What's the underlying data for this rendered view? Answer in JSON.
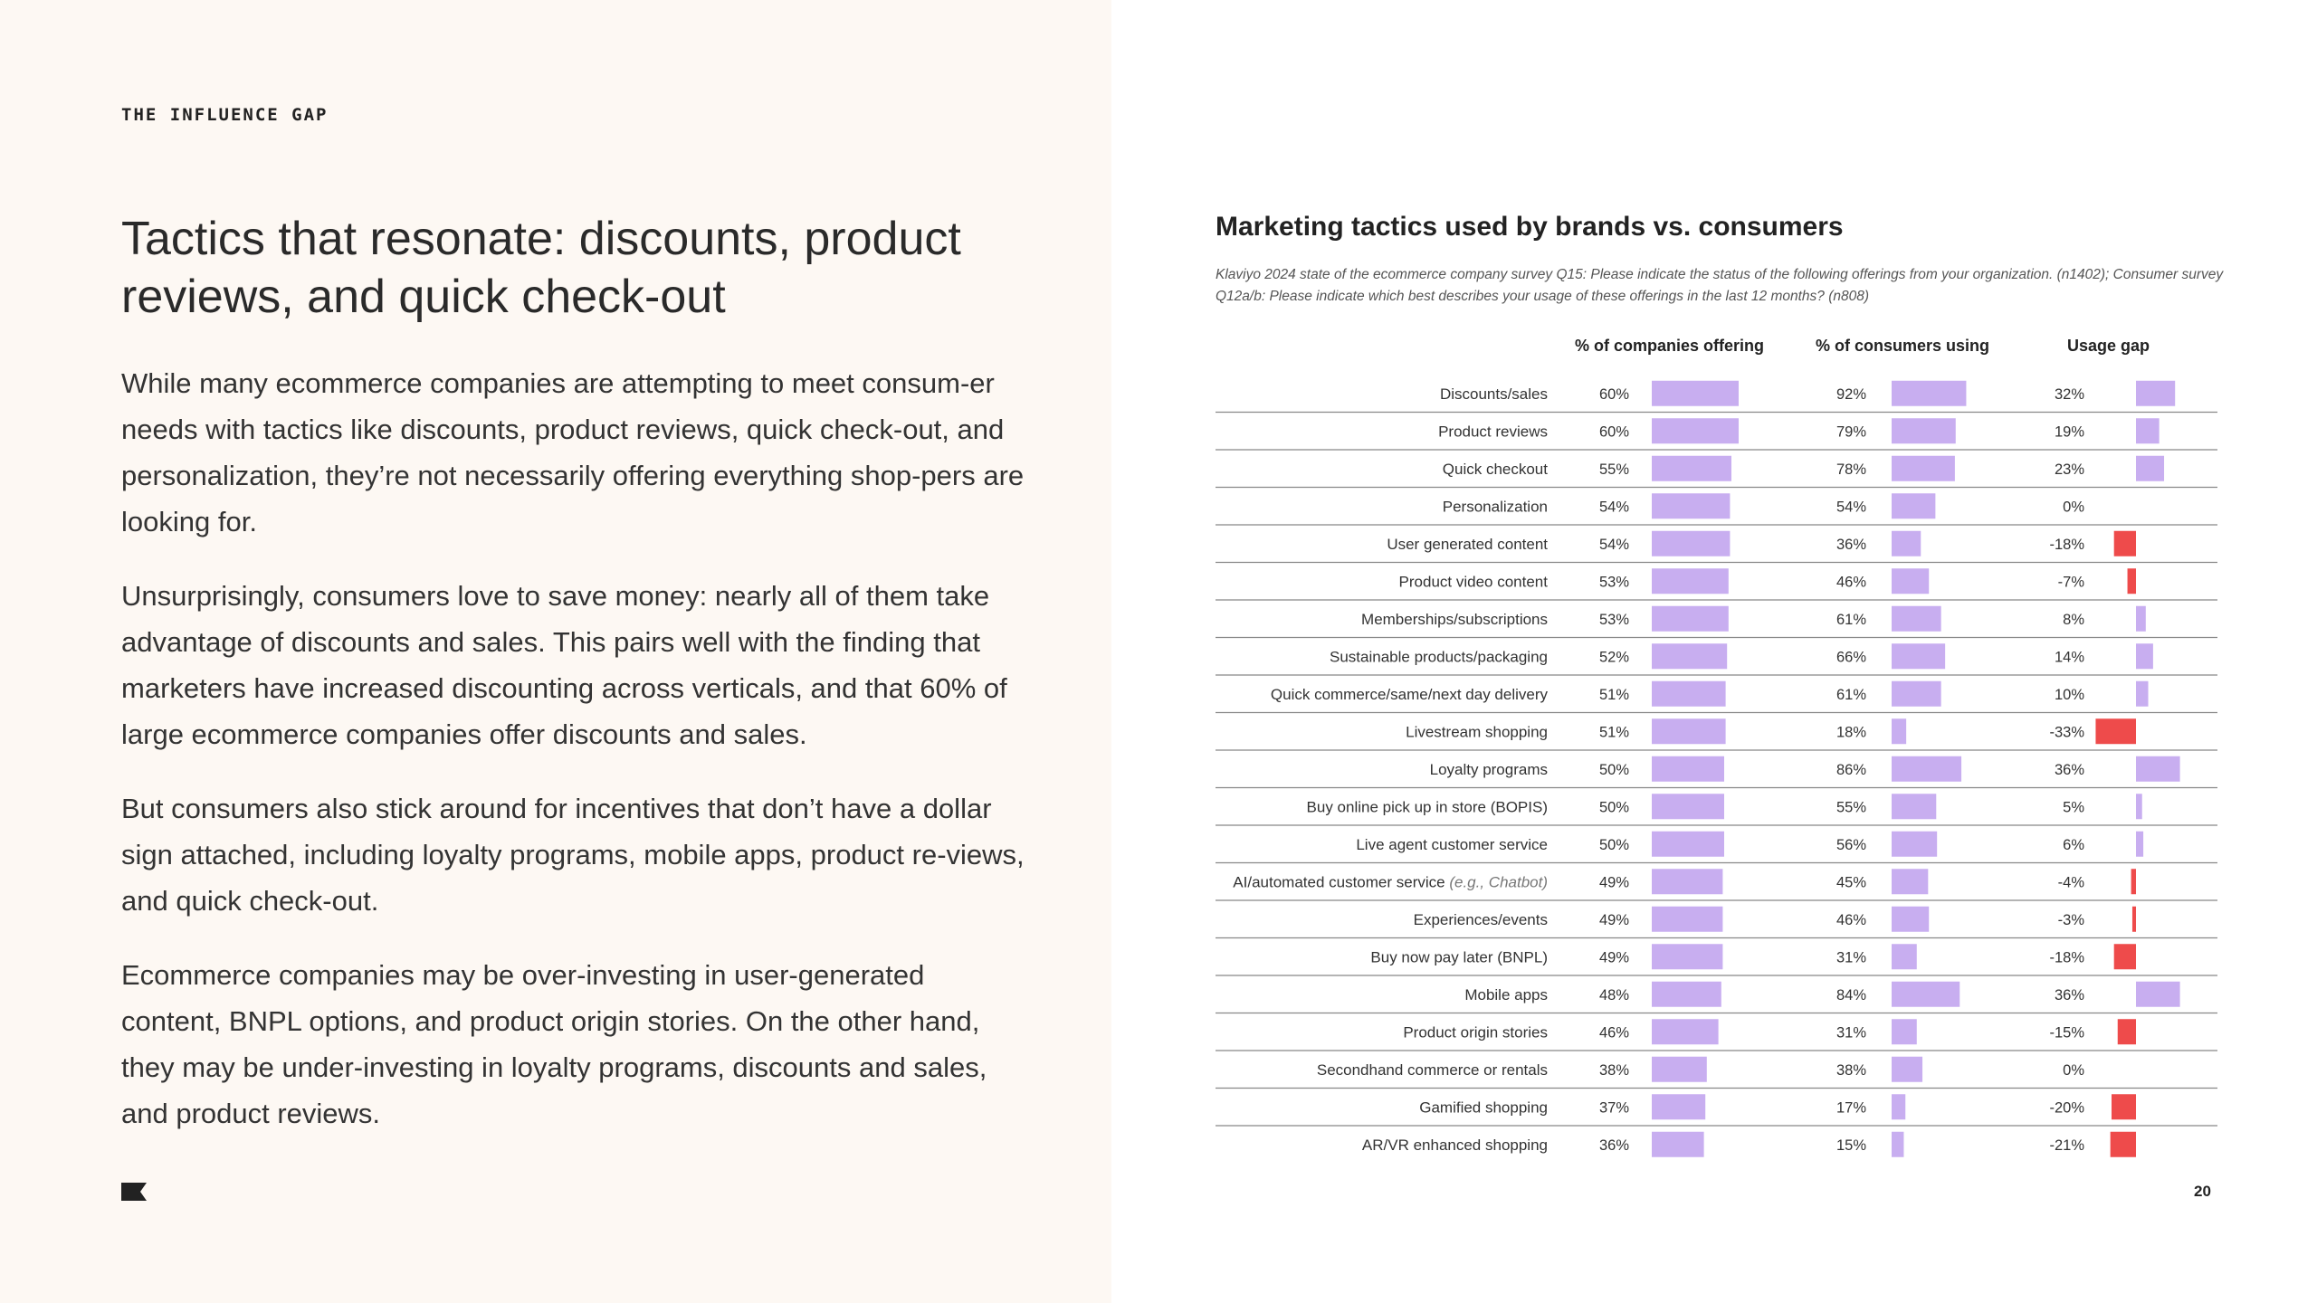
{
  "page": {
    "eyebrow": "THE INFLUENCE GAP",
    "headline": "Tactics that resonate: discounts, product reviews, and quick check-out",
    "paragraphs": [
      "While many ecommerce companies are attempting to meet consum-er needs with tactics like discounts, product reviews, quick check-out, and personalization, they’re not necessarily offering everything shop-pers are looking for.",
      "Unsurprisingly, consumers love to save money: nearly all of them take advantage of discounts and sales. This pairs well with the finding that marketers have increased discounting across verticals, and that 60% of large ecommerce companies offer discounts and sales.",
      "But consumers also stick around for incentives that don’t have a dollar sign attached, including loyalty programs, mobile apps, product re-views, and quick check-out.",
      "Ecommerce companies may be over-investing in user-generated content, BNPL options, and product origin stories. On the other hand, they may be under-investing in loyalty programs, discounts and sales, and product reviews."
    ],
    "page_number": "20",
    "logo_icon": "flag-logo-icon"
  },
  "chart_data": {
    "type": "bar",
    "title": "Marketing tactics used by brands vs. consumers",
    "source": "Klaviyo 2024 state of the ecommerce company survey  Q15: Please indicate the status of the following offerings from your organization. (n1402); Consumer survey Q12a/b: Please indicate which best describes your usage of these offerings in the last 12 months? (n808)",
    "column_headers": [
      "% of companies offering",
      "% of consumers using",
      "Usage gap"
    ],
    "categories": [
      "Discounts/sales",
      "Product reviews",
      "Quick checkout",
      "Personalization",
      "User generated content",
      "Product video content",
      "Memberships/subscriptions",
      "Sustainable products/packaging",
      "Quick commerce/same/next day delivery",
      "Livestream shopping",
      "Loyalty programs",
      "Buy online pick up in store (BOPIS)",
      "Live agent customer service",
      "AI/automated customer service",
      "Experiences/events",
      "Buy now pay later (BNPL)",
      "Mobile apps",
      "Product origin stories",
      "Secondhand commerce or rentals",
      "Gamified shopping",
      "AR/VR enhanced shopping"
    ],
    "category_notes": {
      "AI/automated customer service": "(e.g., Chatbot)"
    },
    "series": [
      {
        "name": "% of companies offering",
        "values": [
          60,
          60,
          55,
          54,
          54,
          53,
          53,
          52,
          51,
          51,
          50,
          50,
          50,
          49,
          49,
          49,
          48,
          46,
          38,
          37,
          36
        ]
      },
      {
        "name": "% of consumers using",
        "values": [
          92,
          79,
          78,
          54,
          36,
          46,
          61,
          66,
          61,
          18,
          86,
          55,
          56,
          45,
          46,
          31,
          84,
          31,
          38,
          17,
          15
        ]
      },
      {
        "name": "Usage gap",
        "values": [
          32,
          19,
          23,
          0,
          -18,
          -7,
          8,
          14,
          10,
          -33,
          36,
          5,
          6,
          -4,
          -3,
          -18,
          36,
          -15,
          0,
          -20,
          -21
        ]
      }
    ],
    "unit": "%",
    "colors": {
      "bar": "#c8aef0",
      "negative": "#ee4b4b",
      "row_line": "#888888"
    }
  }
}
